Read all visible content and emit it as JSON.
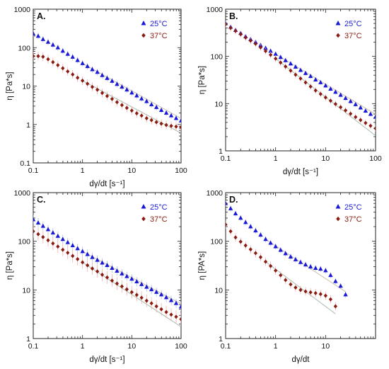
{
  "colors": {
    "c25": "#1a1ad6",
    "c37": "#8b1a10",
    "err25": "#9db8f0",
    "err37": "#f0a4a4",
    "fit25": "#c9b7a0",
    "fit37": "#9fb8a8"
  },
  "chart_data": [
    {
      "type": "scatter",
      "panel_label": "A.",
      "xlabel": "dγ/dt [s⁻¹]",
      "ylabel": "η [Pa*s]",
      "xscale": "log",
      "yscale": "log",
      "xlim": [
        0.1,
        100
      ],
      "ylim": [
        0.1,
        1000
      ],
      "xticks": [
        "0.1",
        "1",
        "10",
        "100"
      ],
      "yticks": [
        "0.1",
        "1",
        "10",
        "100",
        "1000"
      ],
      "legend_position": "top-right",
      "series": [
        {
          "name": "25°C",
          "marker": "triangle",
          "x": [
            0.1,
            0.126,
            0.158,
            0.2,
            0.251,
            0.316,
            0.398,
            0.501,
            0.631,
            0.794,
            1,
            1.26,
            1.58,
            2,
            2.51,
            3.16,
            3.98,
            5.01,
            6.31,
            7.94,
            10,
            12.6,
            15.8,
            20,
            25.1,
            31.6,
            39.8,
            50.1,
            63.1,
            79.4,
            100
          ],
          "y": [
            230,
            200,
            165,
            140,
            118,
            100,
            82,
            68,
            57,
            47,
            39,
            32.5,
            27,
            23,
            19,
            16,
            13.5,
            11.2,
            9.5,
            8,
            6.7,
            5.6,
            4.7,
            4,
            3.3,
            2.8,
            2.35,
            2,
            1.7,
            1.45,
            1.25
          ]
        },
        {
          "name": "37°C",
          "marker": "diamond",
          "x": [
            0.1,
            0.126,
            0.158,
            0.2,
            0.251,
            0.316,
            0.398,
            0.501,
            0.631,
            0.794,
            1,
            1.26,
            1.58,
            2,
            2.51,
            3.16,
            3.98,
            5.01,
            6.31,
            7.94,
            10,
            12.6,
            15.8,
            20,
            25.1,
            31.6,
            39.8,
            50.1,
            63.1,
            79.4,
            100
          ],
          "y": [
            60,
            60,
            58,
            50,
            42,
            35,
            29,
            24,
            20,
            16.5,
            13.8,
            11.5,
            9.5,
            8,
            6.6,
            5.5,
            4.6,
            3.8,
            3.2,
            2.7,
            2.3,
            1.95,
            1.7,
            1.45,
            1.3,
            1.15,
            1.05,
            0.97,
            0.92,
            0.88,
            0.85
          ]
        }
      ]
    },
    {
      "type": "scatter",
      "panel_label": "B.",
      "xlabel": "dγ/dt [s⁻¹]",
      "ylabel": "η [Pa*s]",
      "xscale": "log",
      "yscale": "log",
      "xlim": [
        0.1,
        100
      ],
      "ylim": [
        1,
        1000
      ],
      "xticks": [
        "0.1",
        "1",
        "10",
        "100"
      ],
      "yticks": [
        "1",
        "10",
        "100",
        "1000"
      ],
      "legend_position": "top-right",
      "series": [
        {
          "name": "25°C",
          "marker": "triangle",
          "x": [
            0.1,
            0.126,
            0.158,
            0.2,
            0.251,
            0.316,
            0.398,
            0.501,
            0.631,
            0.794,
            1,
            1.26,
            1.58,
            2,
            2.51,
            3.16,
            3.98,
            5.01,
            6.31,
            7.94,
            10,
            12.6,
            15.8,
            20,
            25.1,
            31.6,
            39.8,
            50.1,
            63.1,
            79.4,
            100
          ],
          "y": [
            500,
            420,
            360,
            310,
            265,
            230,
            200,
            172,
            150,
            130,
            112,
            96,
            82,
            70,
            60,
            51,
            44,
            38,
            32,
            28,
            24,
            20.5,
            17.6,
            15.2,
            13,
            11.2,
            9.6,
            8.2,
            7,
            6,
            5.2
          ]
        },
        {
          "name": "37°C",
          "marker": "diamond",
          "x": [
            0.1,
            0.126,
            0.158,
            0.2,
            0.251,
            0.316,
            0.398,
            0.501,
            0.631,
            0.794,
            1,
            1.26,
            1.58,
            2,
            2.51,
            3.16,
            3.98,
            5.01,
            6.31,
            7.94,
            10,
            12.6,
            15.8,
            20,
            25.1,
            31.6,
            39.8,
            50.1,
            63.1,
            79.4,
            100
          ],
          "y": [
            480,
            400,
            345,
            295,
            250,
            215,
            185,
            155,
            130,
            108,
            90,
            74,
            61,
            50,
            41,
            34,
            28,
            23,
            19,
            16,
            13.5,
            11.5,
            9.8,
            8.4,
            7.2,
            6.1,
            5.2,
            4.5,
            3.9,
            3.4,
            3
          ]
        }
      ]
    },
    {
      "type": "scatter",
      "panel_label": "C.",
      "xlabel": "dγ/dt [s⁻¹]",
      "ylabel": "η [Pa*s]",
      "xscale": "log",
      "yscale": "log",
      "xlim": [
        0.1,
        100
      ],
      "ylim": [
        1,
        1000
      ],
      "xticks": [
        "0.1",
        "1",
        "10",
        "100"
      ],
      "yticks": [
        "1",
        "10",
        "100",
        "1000"
      ],
      "legend_position": "top-right",
      "series": [
        {
          "name": "25°C",
          "marker": "triangle",
          "x": [
            0.1,
            0.126,
            0.158,
            0.2,
            0.251,
            0.316,
            0.398,
            0.501,
            0.631,
            0.794,
            1,
            1.26,
            1.58,
            2,
            2.51,
            3.16,
            3.98,
            5.01,
            6.31,
            7.94,
            10,
            12.6,
            15.8,
            20,
            25.1,
            31.6,
            39.8,
            50.1,
            63.1,
            79.4,
            100
          ],
          "y": [
            280,
            240,
            205,
            175,
            150,
            128,
            110,
            95,
            82,
            71,
            62,
            54,
            47,
            41,
            36,
            32,
            28,
            24.5,
            21.5,
            19,
            16.8,
            14.8,
            13,
            11.5,
            10.2,
            9,
            8,
            7,
            6.1,
            5.3,
            4.5
          ]
        },
        {
          "name": "37°C",
          "marker": "diamond",
          "x": [
            0.1,
            0.126,
            0.158,
            0.2,
            0.251,
            0.316,
            0.398,
            0.501,
            0.631,
            0.794,
            1,
            1.26,
            1.58,
            2,
            2.51,
            3.16,
            3.98,
            5.01,
            6.31,
            7.94,
            10,
            12.6,
            15.8,
            20,
            25.1,
            31.6,
            39.8,
            50.1,
            63.1,
            79.4,
            100
          ],
          "y": [
            160,
            140,
            122,
            105,
            90,
            78,
            67,
            58,
            50,
            43,
            37,
            32,
            27.5,
            24,
            20.5,
            18,
            15.5,
            13.5,
            11.8,
            10.3,
            9,
            7.9,
            6.9,
            6,
            5.3,
            4.6,
            4,
            3.5,
            3.1,
            2.8,
            2.5
          ]
        }
      ]
    },
    {
      "type": "scatter",
      "panel_label": "D.",
      "xlabel": "dγ/dt",
      "ylabel": "η [PA*s]",
      "xscale": "log",
      "yscale": "log",
      "xlim": [
        0.1,
        100
      ],
      "ylim": [
        1,
        1000
      ],
      "xticks": [
        "0.1",
        "1",
        "10"
      ],
      "yticks": [
        "1",
        "10",
        "100",
        "1000"
      ],
      "legend_position": "top-right",
      "series": [
        {
          "name": "25°C",
          "marker": "triangle",
          "x": [
            0.1,
            0.126,
            0.158,
            0.2,
            0.251,
            0.316,
            0.398,
            0.501,
            0.631,
            0.794,
            1,
            1.26,
            1.58,
            2,
            2.51,
            3.16,
            3.98,
            5.01,
            6.31,
            7.94,
            10,
            12.6,
            15.8,
            20,
            25.1
          ],
          "y": [
            600,
            470,
            370,
            300,
            245,
            200,
            165,
            135,
            110,
            92,
            78,
            66,
            56,
            48,
            42,
            37,
            33,
            30,
            28,
            27,
            25,
            20,
            15,
            12,
            8
          ]
        },
        {
          "name": "37°C",
          "marker": "diamond",
          "x": [
            0.1,
            0.126,
            0.158,
            0.2,
            0.251,
            0.316,
            0.398,
            0.501,
            0.631,
            0.794,
            1,
            1.26,
            1.58,
            2,
            2.51,
            3.16,
            3.98,
            5.01,
            6.31,
            7.94,
            10,
            12.6,
            15.8
          ],
          "y": [
            220,
            160,
            120,
            98,
            82,
            68,
            57,
            47,
            38,
            31,
            25,
            20,
            16,
            13,
            11.2,
            10,
            9.3,
            8.9,
            8.6,
            8.2,
            7.6,
            6.4,
            4.6
          ]
        }
      ]
    }
  ]
}
